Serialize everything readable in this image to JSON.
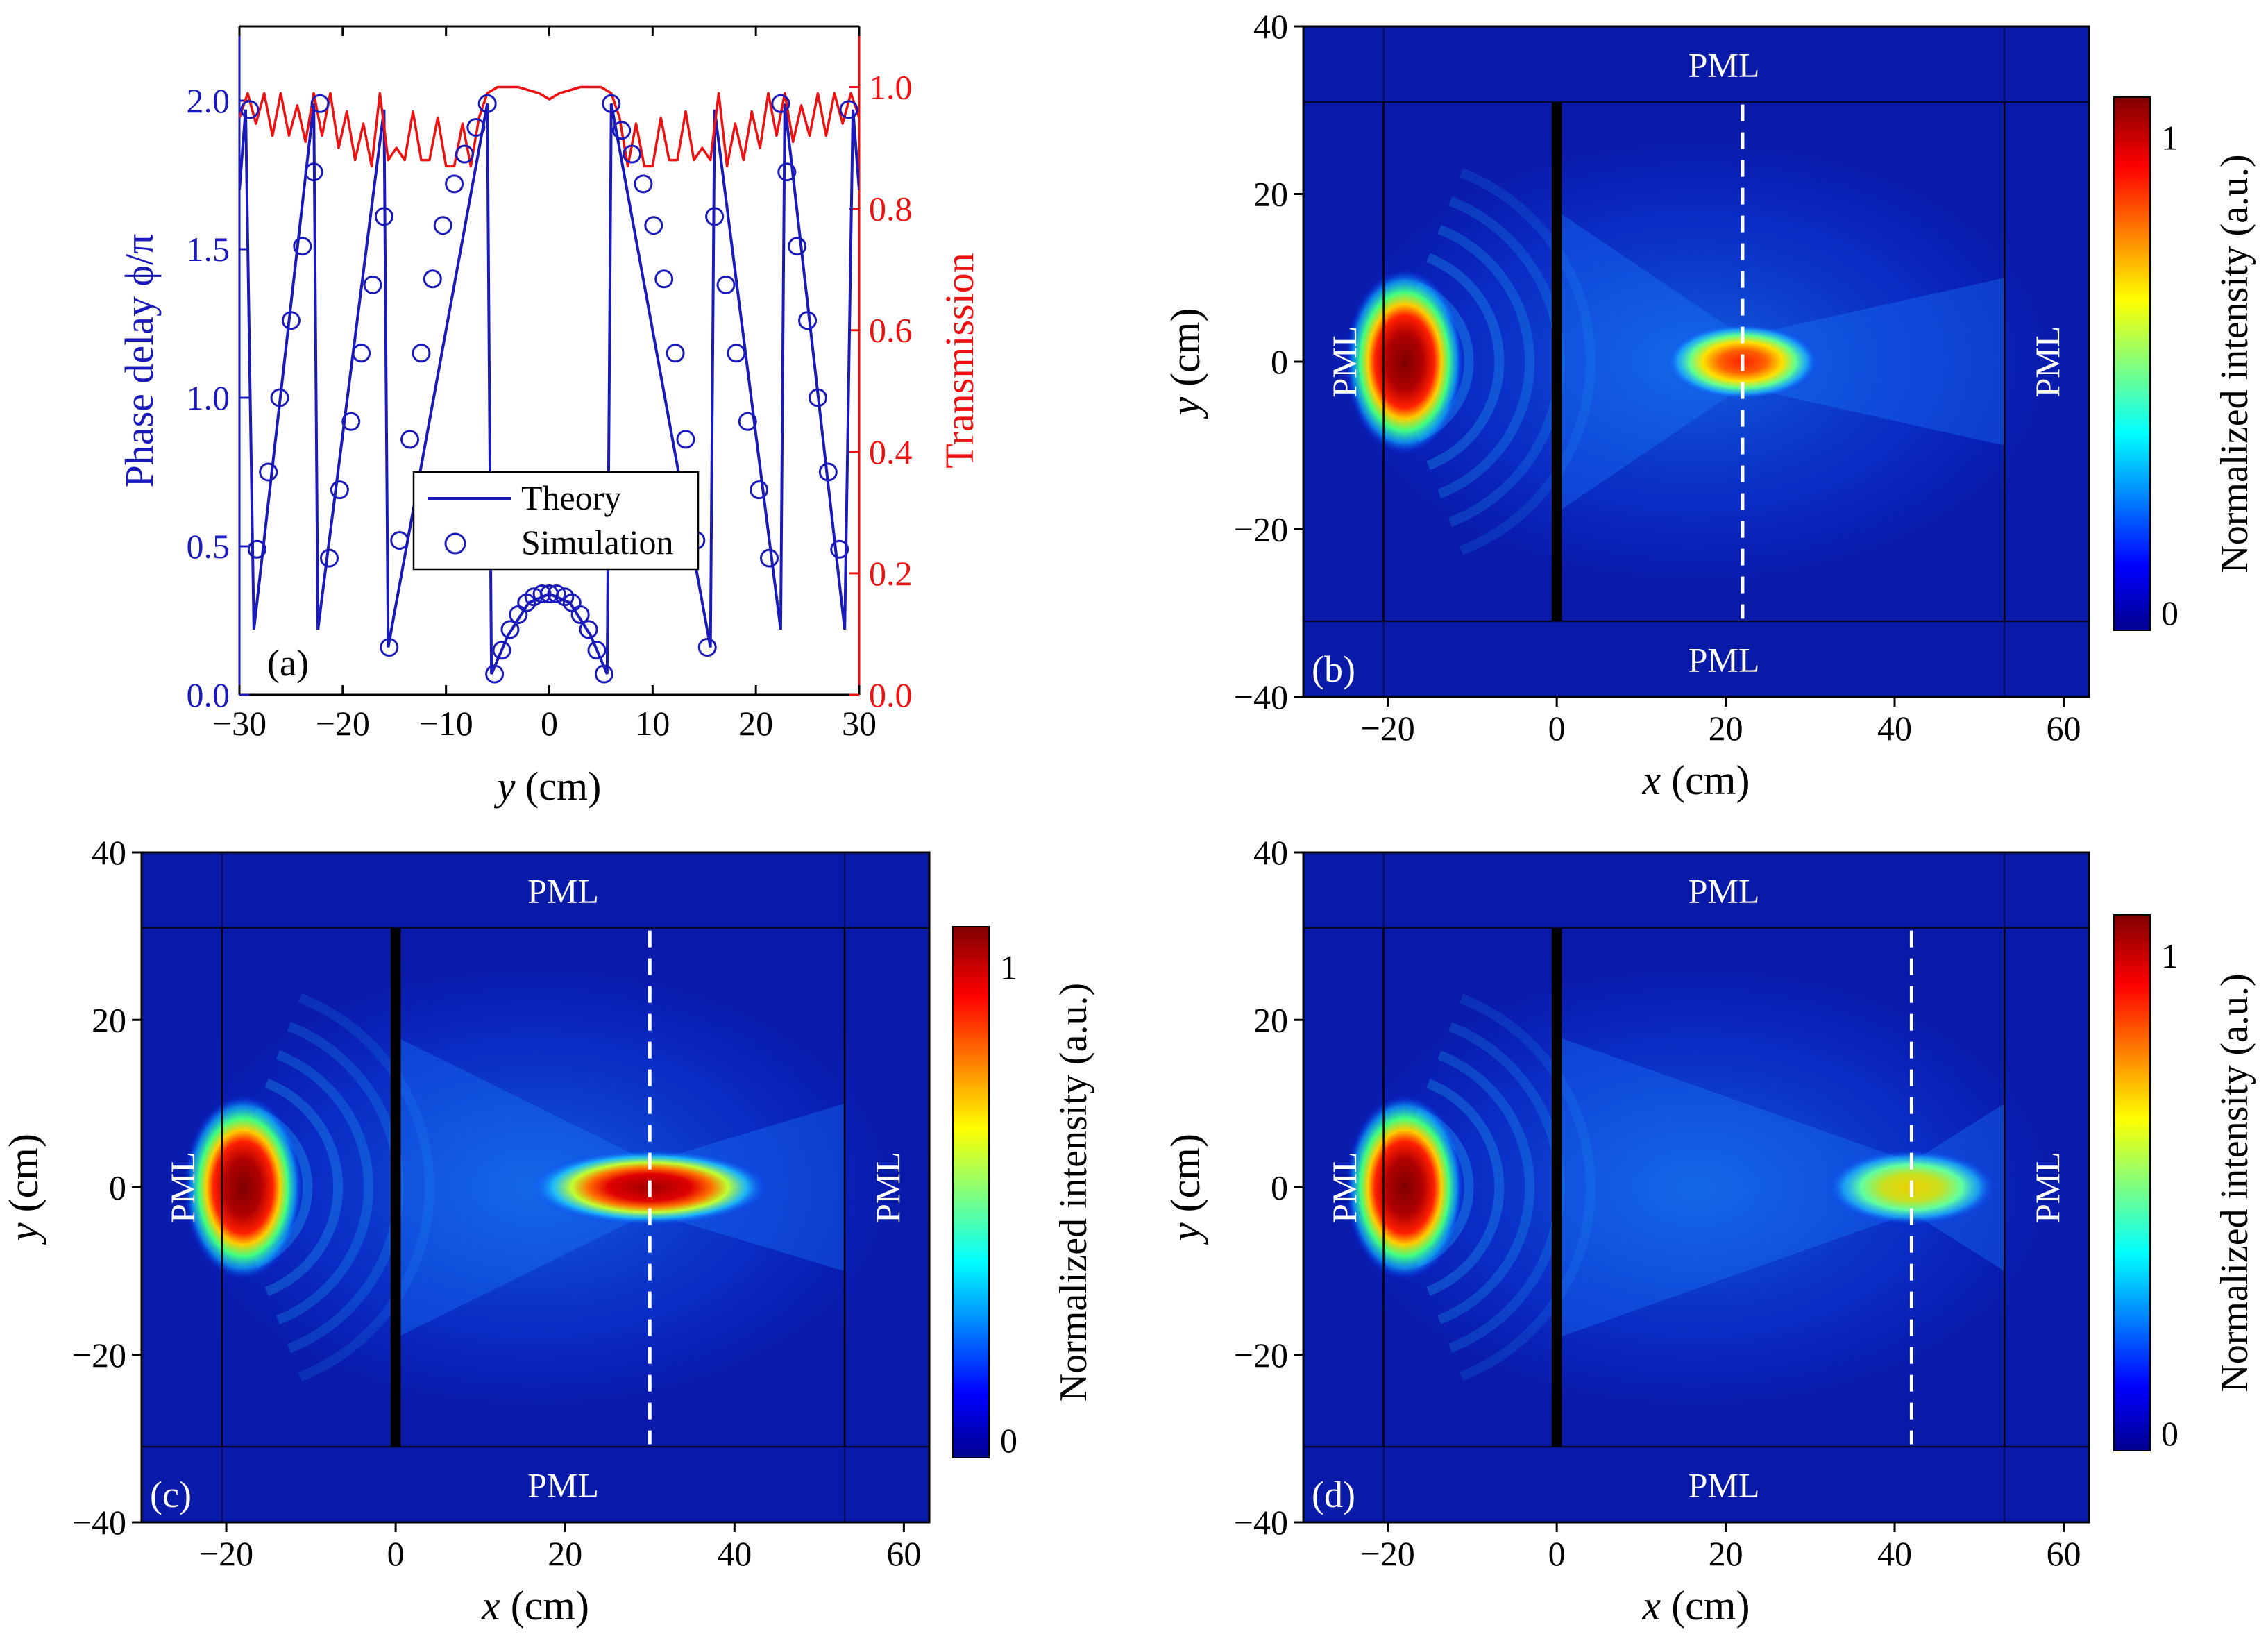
{
  "chart_data": [
    {
      "type": "line",
      "panel": "(a)",
      "xlabel_italic": "y",
      "xlabel_unit": " (cm)",
      "xlim": [
        -30,
        30
      ],
      "xticks": [
        "−30",
        "−20",
        "−10",
        "0",
        "10",
        "20",
        "30"
      ],
      "ylabel_left": "Phase delay ϕ/π",
      "ylim_left": [
        0,
        2.25
      ],
      "yticks_left": [
        "0.0",
        "0.5",
        "1.0",
        "1.5",
        "2.0"
      ],
      "ylabel_right": "Transmission",
      "ylim_right": [
        0,
        1.1
      ],
      "yticks_right": [
        "0.0",
        "0.2",
        "0.4",
        "0.6",
        "0.8",
        "1.0"
      ],
      "colors": {
        "theory": "#1a1aba",
        "transmission": "#ee1111"
      },
      "legend": {
        "theory": "Theory",
        "simulation": "Simulation",
        "position": "center"
      },
      "series": [
        {
          "name": "Theory",
          "axis": "left",
          "style": "line",
          "x": [
            -30,
            -29.4,
            -28.6,
            -22.8,
            -22.4,
            -16.0,
            -15.6,
            -6.0,
            -5.6,
            -4,
            -2,
            0,
            2,
            4,
            5.6,
            6.0,
            15.6,
            16.0,
            22.4,
            22.8,
            28.6,
            29.4,
            30
          ],
          "y": [
            1.7,
            1.97,
            0.22,
            1.99,
            0.22,
            1.97,
            0.16,
            1.99,
            0.07,
            0.2,
            0.31,
            0.34,
            0.31,
            0.2,
            0.07,
            1.99,
            0.16,
            1.97,
            0.22,
            1.99,
            0.22,
            1.97,
            1.7
          ]
        },
        {
          "name": "Simulation",
          "axis": "left",
          "style": "markers",
          "x": [
            -29,
            -28.3,
            -27.2,
            -26.1,
            -25.0,
            -23.9,
            -22.8,
            -22.2,
            -21.3,
            -20.3,
            -19.2,
            -18.2,
            -17.1,
            -16.0,
            -15.5,
            -14.5,
            -13.5,
            -12.4,
            -11.3,
            -10.3,
            -9.2,
            -8.2,
            -7.1,
            -6.0,
            -5.3,
            -4.6,
            -3.8,
            -3.0,
            -2.2,
            -1.5,
            -0.7,
            0,
            0.7,
            1.5,
            2.2,
            3.0,
            3.8,
            4.6,
            5.3,
            6.0,
            7.0,
            8.0,
            9.1,
            10.1,
            11.1,
            12.2,
            13.2,
            14.2,
            15.3,
            16.0,
            17.1,
            18.1,
            19.2,
            20.3,
            21.3,
            22.4,
            23.0,
            24.0,
            25.0,
            26.0,
            27.0,
            28.1,
            29.0
          ],
          "y": [
            1.97,
            0.49,
            0.75,
            1.0,
            1.26,
            1.51,
            1.76,
            1.99,
            0.46,
            0.69,
            0.92,
            1.15,
            1.38,
            1.61,
            0.16,
            0.52,
            0.86,
            1.15,
            1.4,
            1.58,
            1.72,
            1.82,
            1.91,
            1.99,
            0.07,
            0.15,
            0.22,
            0.27,
            0.31,
            0.33,
            0.34,
            0.34,
            0.34,
            0.33,
            0.31,
            0.27,
            0.22,
            0.15,
            0.07,
            1.99,
            1.9,
            1.82,
            1.72,
            1.58,
            1.4,
            1.15,
            0.86,
            0.52,
            0.16,
            1.61,
            1.38,
            1.15,
            0.92,
            0.69,
            0.46,
            1.99,
            1.76,
            1.51,
            1.26,
            1.0,
            0.75,
            0.49,
            1.97
          ]
        },
        {
          "name": "Transmission",
          "axis": "right",
          "style": "line",
          "x": [
            -30,
            -29.2,
            -28.4,
            -27.6,
            -26.8,
            -26.0,
            -25.2,
            -24.4,
            -23.6,
            -22.8,
            -22.0,
            -21.2,
            -20.4,
            -19.6,
            -18.8,
            -18.0,
            -17.2,
            -16.4,
            -15.6,
            -14.8,
            -14.0,
            -13.2,
            -12.4,
            -11.6,
            -10.8,
            -10.0,
            -9.2,
            -8.4,
            -7.6,
            -6.8,
            -6.0,
            -5.0,
            -3.0,
            -1.0,
            0,
            1.0,
            3.0,
            5.0,
            6.0,
            6.8,
            7.6,
            8.4,
            9.2,
            10.0,
            10.8,
            11.6,
            12.4,
            13.2,
            14.0,
            14.8,
            15.6,
            16.4,
            17.2,
            18.0,
            18.8,
            19.6,
            20.4,
            21.2,
            22.0,
            22.8,
            23.6,
            24.4,
            25.2,
            26.0,
            26.8,
            27.6,
            28.4,
            29.2,
            30
          ],
          "y": [
            0.95,
            0.99,
            0.94,
            0.99,
            0.92,
            0.99,
            0.92,
            0.97,
            0.91,
            0.99,
            0.92,
            0.99,
            0.9,
            0.96,
            0.88,
            0.94,
            0.87,
            0.99,
            0.88,
            0.9,
            0.88,
            0.96,
            0.88,
            0.88,
            0.95,
            0.87,
            0.87,
            0.94,
            0.87,
            0.95,
            0.99,
            1.0,
            1.0,
            0.99,
            0.98,
            0.99,
            1.0,
            1.0,
            0.99,
            0.95,
            0.87,
            0.94,
            0.87,
            0.87,
            0.95,
            0.88,
            0.88,
            0.96,
            0.88,
            0.9,
            0.88,
            0.99,
            0.87,
            0.94,
            0.88,
            0.96,
            0.9,
            0.99,
            0.92,
            0.99,
            0.91,
            0.97,
            0.92,
            0.99,
            0.92,
            0.99,
            0.94,
            0.99,
            0.95
          ]
        }
      ]
    },
    {
      "type": "heatmap",
      "panel": "(b)",
      "xlabel_italic": "x",
      "xlabel_unit": " (cm)",
      "ylabel_italic": "y",
      "ylabel_unit": " (cm)",
      "xlim": [
        -30,
        63
      ],
      "ylim": [
        -40,
        40
      ],
      "xticks": [
        "−20",
        "0",
        "20",
        "40",
        "60"
      ],
      "yticks": [
        "−40",
        "−20",
        "0",
        "20",
        "40"
      ],
      "pml_labels": [
        "PML",
        "PML",
        "PML",
        "PML"
      ],
      "pml_bounds": {
        "x_left": -20.5,
        "x_right": 53,
        "y_top": 31,
        "y_bottom": -31
      },
      "source": {
        "x": -20,
        "y": 0,
        "intensity": 1.0
      },
      "focus": {
        "x": 22,
        "y": 0,
        "intensity": 0.95,
        "half_length": 9
      },
      "dashed_line_x": 22,
      "colorbar": {
        "label": "Normalized intensity (a.u.)",
        "ticks": [
          "1",
          "0"
        ]
      }
    },
    {
      "type": "heatmap",
      "panel": "(c)",
      "xlabel_italic": "x",
      "xlabel_unit": " (cm)",
      "ylabel_italic": "y",
      "ylabel_unit": " (cm)",
      "xlim": [
        -30,
        63
      ],
      "ylim": [
        -40,
        40
      ],
      "xticks": [
        "−20",
        "0",
        "20",
        "40",
        "60"
      ],
      "yticks": [
        "−40",
        "−20",
        "0",
        "20",
        "40"
      ],
      "pml_labels": [
        "PML",
        "PML",
        "PML",
        "PML"
      ],
      "pml_bounds": {
        "x_left": -20.5,
        "x_right": 53,
        "y_top": 31,
        "y_bottom": -31
      },
      "source": {
        "x": -20,
        "y": 0,
        "intensity": 1.0
      },
      "focus": {
        "x": 30,
        "y": 0,
        "intensity": 1.0,
        "half_length": 14
      },
      "dashed_line_x": 30,
      "colorbar": {
        "label": "Normalized intensity (a.u.)",
        "ticks": [
          "1",
          "0"
        ]
      }
    },
    {
      "type": "heatmap",
      "panel": "(d)",
      "xlabel_italic": "x",
      "xlabel_unit": " (cm)",
      "ylabel_italic": "y",
      "ylabel_unit": " (cm)",
      "xlim": [
        -30,
        63
      ],
      "ylim": [
        -40,
        40
      ],
      "xticks": [
        "−20",
        "0",
        "20",
        "40",
        "60"
      ],
      "yticks": [
        "−40",
        "−20",
        "0",
        "20",
        "40"
      ],
      "pml_labels": [
        "PML",
        "PML",
        "PML",
        "PML"
      ],
      "pml_bounds": {
        "x_left": -20.5,
        "x_right": 53,
        "y_top": 31,
        "y_bottom": -31
      },
      "source": {
        "x": -20,
        "y": 0,
        "intensity": 1.0
      },
      "focus": {
        "x": 42,
        "y": 0,
        "intensity": 0.65,
        "half_length": 10
      },
      "dashed_line_x": 42,
      "colorbar": {
        "label": "Normalized intensity (a.u.)",
        "ticks": [
          "1",
          "0"
        ]
      }
    }
  ]
}
